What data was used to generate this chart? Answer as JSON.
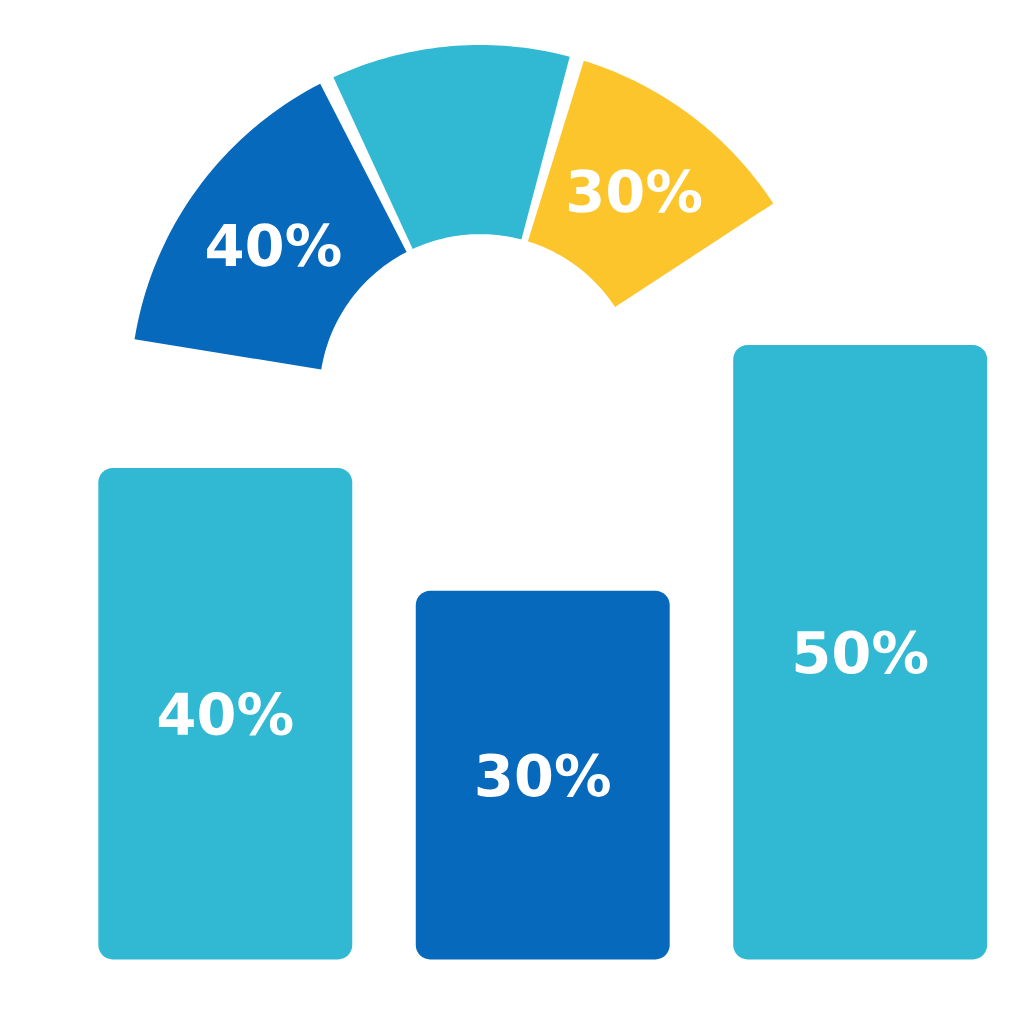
{
  "chart_data": [
    {
      "type": "bar",
      "categories": [
        null,
        null,
        null
      ],
      "values": [
        40,
        30,
        50
      ],
      "colors": [
        "#31b9d4",
        "#0669bb",
        "#31b9d4"
      ],
      "value_labels": [
        "40%",
        "30%",
        "50%"
      ],
      "ylim": [
        0,
        50
      ]
    },
    {
      "type": "donut",
      "categories": [
        null,
        null,
        null
      ],
      "values": [
        40,
        30,
        30
      ],
      "colors": [
        "#0669bb",
        "#31b9d4",
        "#fdc52c"
      ],
      "value_labels": [
        "40%",
        null,
        "30%"
      ]
    }
  ]
}
